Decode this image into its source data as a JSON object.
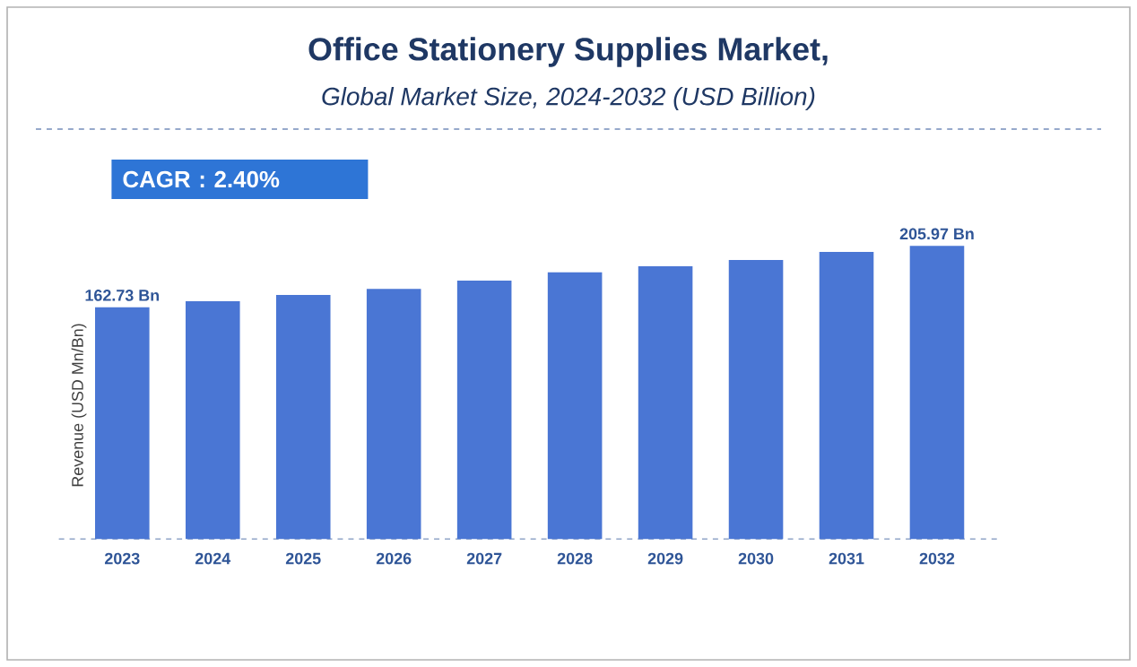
{
  "chart_data": {
    "type": "bar",
    "title": "Office Stationery Supplies Market,",
    "subtitle": "Global Market Size, 2024-2032 (USD Billion)",
    "ylabel": "Revenue (USD Mn/Bn)",
    "categories": [
      "2023",
      "2024",
      "2025",
      "2026",
      "2027",
      "2028",
      "2029",
      "2030",
      "2031",
      "2032"
    ],
    "values": [
      162.73,
      167.1,
      171.4,
      175.7,
      181.5,
      187.3,
      191.6,
      196.0,
      201.7,
      205.97
    ],
    "color": "#4a76d4",
    "value_labels": [
      "162.73 Bn",
      null,
      null,
      null,
      null,
      null,
      null,
      null,
      null,
      "205.97 Bn"
    ],
    "annotations": [
      "CAGR : 2.40%"
    ]
  }
}
